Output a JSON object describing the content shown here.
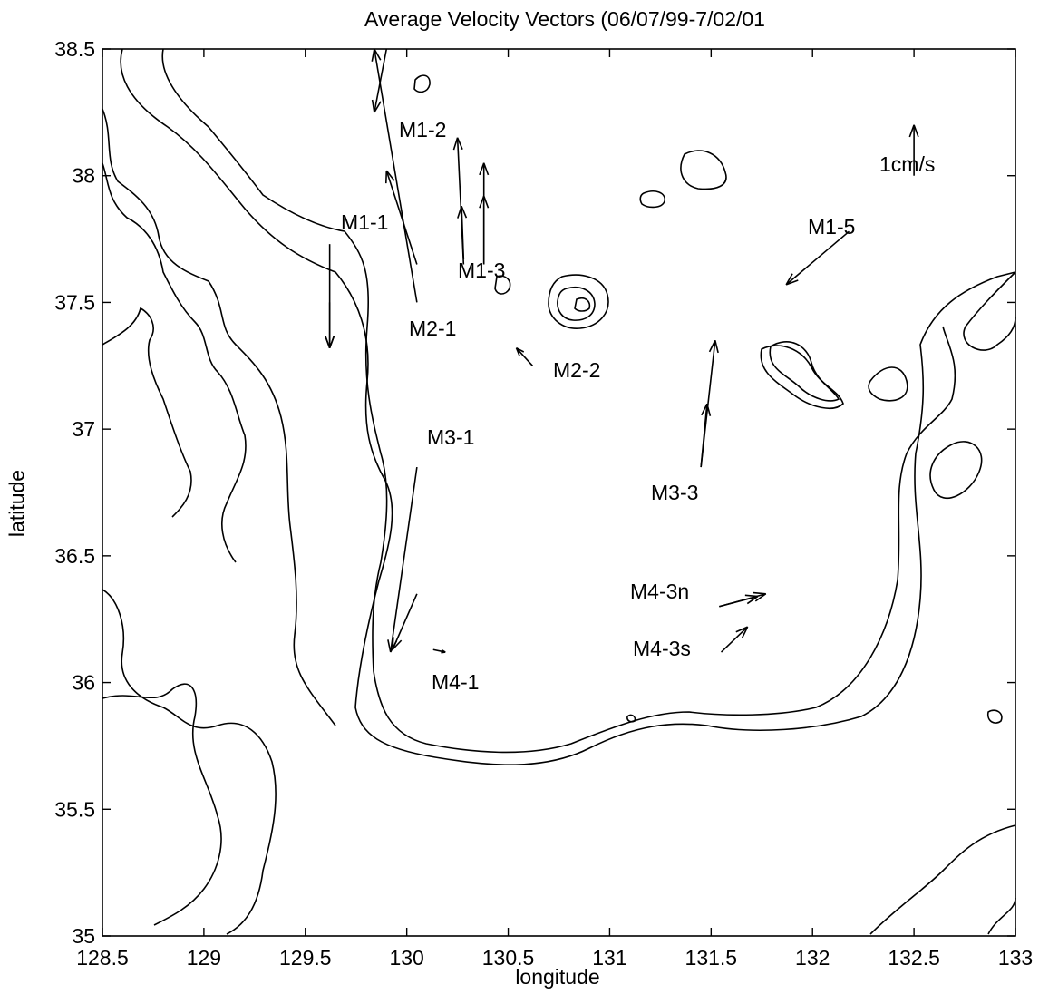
{
  "title": "Average Velocity Vectors (06/07/99-7/02/01",
  "xlabel": "longitude",
  "ylabel": "latitude",
  "xticks": [
    "128.5",
    "129",
    "129.5",
    "130",
    "130.5",
    "131",
    "131.5",
    "132",
    "132.5",
    "133"
  ],
  "yticks": [
    "35",
    "35.5",
    "36",
    "36.5",
    "37",
    "37.5",
    "38",
    "38.5"
  ],
  "xlim": [
    128.5,
    133
  ],
  "ylim": [
    35,
    38.5
  ],
  "scale_label": "1cm/s",
  "station_labels": [
    "M1-2",
    "M1-1",
    "M1-3",
    "M1-5",
    "M2-1",
    "M2-2",
    "M3-1",
    "M3-3",
    "M4-3n",
    "M4-3s",
    "M4-1"
  ],
  "colors": {
    "line": "#000000",
    "background": "#ffffff"
  },
  "vectors": [
    {
      "station": "M1-1",
      "lon": 130.05,
      "lat": 37.5,
      "tip": [
        129.84,
        38.5
      ]
    },
    {
      "station": "M1-1",
      "lon": 130.05,
      "lat": 37.65,
      "tip": [
        129.9,
        38.02
      ]
    },
    {
      "station": "M1-1",
      "lon": 129.9,
      "lat": 38.5,
      "tip": [
        129.84,
        38.25
      ]
    },
    {
      "station": "M1-2",
      "lon": 130.28,
      "lat": 37.65,
      "tip": [
        130.25,
        38.15
      ]
    },
    {
      "station": "M1-2",
      "lon": 130.28,
      "lat": 37.67,
      "tip": [
        130.27,
        37.88
      ]
    },
    {
      "station": "M1-3",
      "lon": 130.38,
      "lat": 37.65,
      "tip": [
        130.38,
        38.05
      ]
    },
    {
      "station": "M1-3",
      "lon": 130.38,
      "lat": 37.65,
      "tip": [
        130.38,
        37.92
      ]
    },
    {
      "station": "M1-5",
      "lon": 132.18,
      "lat": 37.78,
      "tip": [
        131.87,
        37.57
      ]
    },
    {
      "station": "M2-1",
      "lon": 129.62,
      "lat": 37.73,
      "tip": [
        129.62,
        37.32
      ]
    },
    {
      "station": "M2-1",
      "lon": 129.62,
      "lat": 37.5,
      "tip": [
        129.62,
        37.32
      ]
    },
    {
      "station": "M2-2",
      "lon": 130.62,
      "lat": 37.25,
      "tip": [
        130.54,
        37.32
      ]
    },
    {
      "station": "M3-1",
      "lon": 130.05,
      "lat": 36.85,
      "tip": [
        129.92,
        36.12
      ]
    },
    {
      "station": "M3-1",
      "lon": 130.05,
      "lat": 36.35,
      "tip": [
        129.93,
        36.13
      ]
    },
    {
      "station": "M3-3",
      "lon": 131.45,
      "lat": 36.85,
      "tip": [
        131.52,
        37.35
      ]
    },
    {
      "station": "M3-3",
      "lon": 131.45,
      "lat": 36.85,
      "tip": [
        131.48,
        37.1
      ]
    },
    {
      "station": "M4-3n",
      "lon": 131.54,
      "lat": 36.3,
      "tip": [
        131.77,
        36.35
      ]
    },
    {
      "station": "M4-3n",
      "lon": 131.54,
      "lat": 36.3,
      "tip": [
        131.73,
        36.34
      ]
    },
    {
      "station": "M4-3s",
      "lon": 131.55,
      "lat": 36.12,
      "tip": [
        131.68,
        36.22
      ]
    },
    {
      "station": "M4-1",
      "lon": 130.13,
      "lat": 36.13,
      "tip": [
        130.19,
        36.12
      ]
    },
    {
      "station": "scale",
      "lon": 132.5,
      "lat": 38.0,
      "tip": [
        132.5,
        38.2
      ]
    }
  ]
}
